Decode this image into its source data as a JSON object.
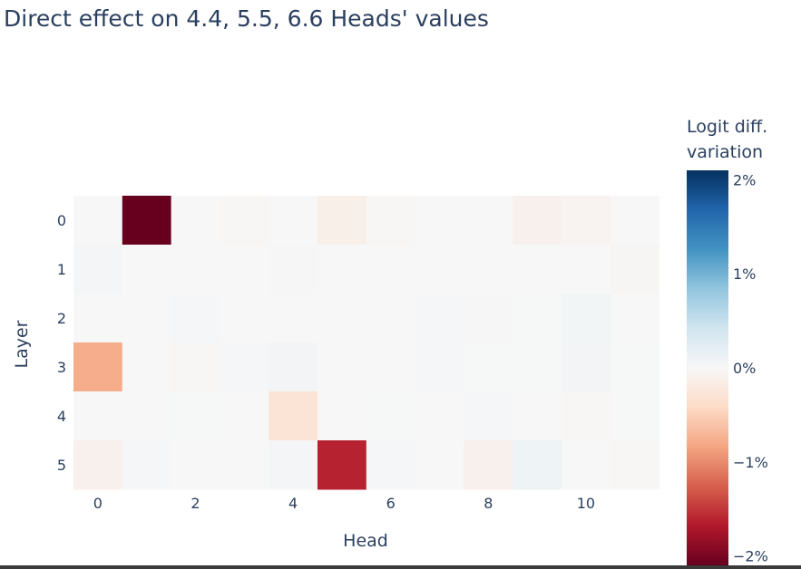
{
  "chart_data": {
    "type": "heatmap",
    "title": "Direct effect on 4.4, 5.5, 6.6 Heads' values",
    "xlabel": "Head",
    "ylabel": "Layer",
    "x_categories": [
      0,
      1,
      2,
      3,
      4,
      5,
      6,
      7,
      8,
      9,
      10,
      11
    ],
    "x_ticks": [
      0,
      2,
      4,
      6,
      8,
      10
    ],
    "y_categories": [
      0,
      1,
      2,
      3,
      4,
      5
    ],
    "z": [
      [
        0.0,
        -2.1,
        0.0,
        -0.02,
        0.0,
        -0.12,
        -0.02,
        0.0,
        0.0,
        -0.1,
        -0.06,
        0.0
      ],
      [
        0.04,
        0.0,
        0.0,
        0.0,
        -0.01,
        0.0,
        0.0,
        0.0,
        0.0,
        0.0,
        0.0,
        -0.03
      ],
      [
        0.0,
        0.0,
        0.02,
        0.0,
        0.0,
        0.0,
        0.0,
        0.02,
        -0.01,
        0.01,
        0.05,
        0.0
      ],
      [
        -0.78,
        0.0,
        -0.02,
        0.03,
        0.06,
        0.0,
        0.0,
        0.03,
        0.01,
        0.01,
        0.06,
        0.01
      ],
      [
        0.0,
        0.0,
        0.01,
        0.0,
        -0.3,
        0.0,
        0.01,
        0.0,
        0.03,
        0.0,
        -0.02,
        0.01
      ],
      [
        -0.1,
        0.02,
        0.0,
        0.0,
        0.04,
        -1.62,
        0.03,
        0.0,
        -0.1,
        0.1,
        0.0,
        -0.02
      ]
    ],
    "zmin": -2.1,
    "zmax": 2.1,
    "colorscale": "RdBu",
    "colorbar": {
      "title": "Logit diff. variation",
      "tick_values": [
        2,
        1,
        0,
        -1,
        -2
      ],
      "tick_labels": [
        "2%",
        "1%",
        "0%",
        "−1%",
        "−2%"
      ]
    },
    "colors": {
      "text": "#2a3f5f",
      "rdbu": [
        "#67001f",
        "#b2182b",
        "#d6604d",
        "#f4a582",
        "#fddbc7",
        "#f7f7f7",
        "#d1e5f0",
        "#92c5de",
        "#4393c3",
        "#2166ac",
        "#053061"
      ]
    }
  }
}
